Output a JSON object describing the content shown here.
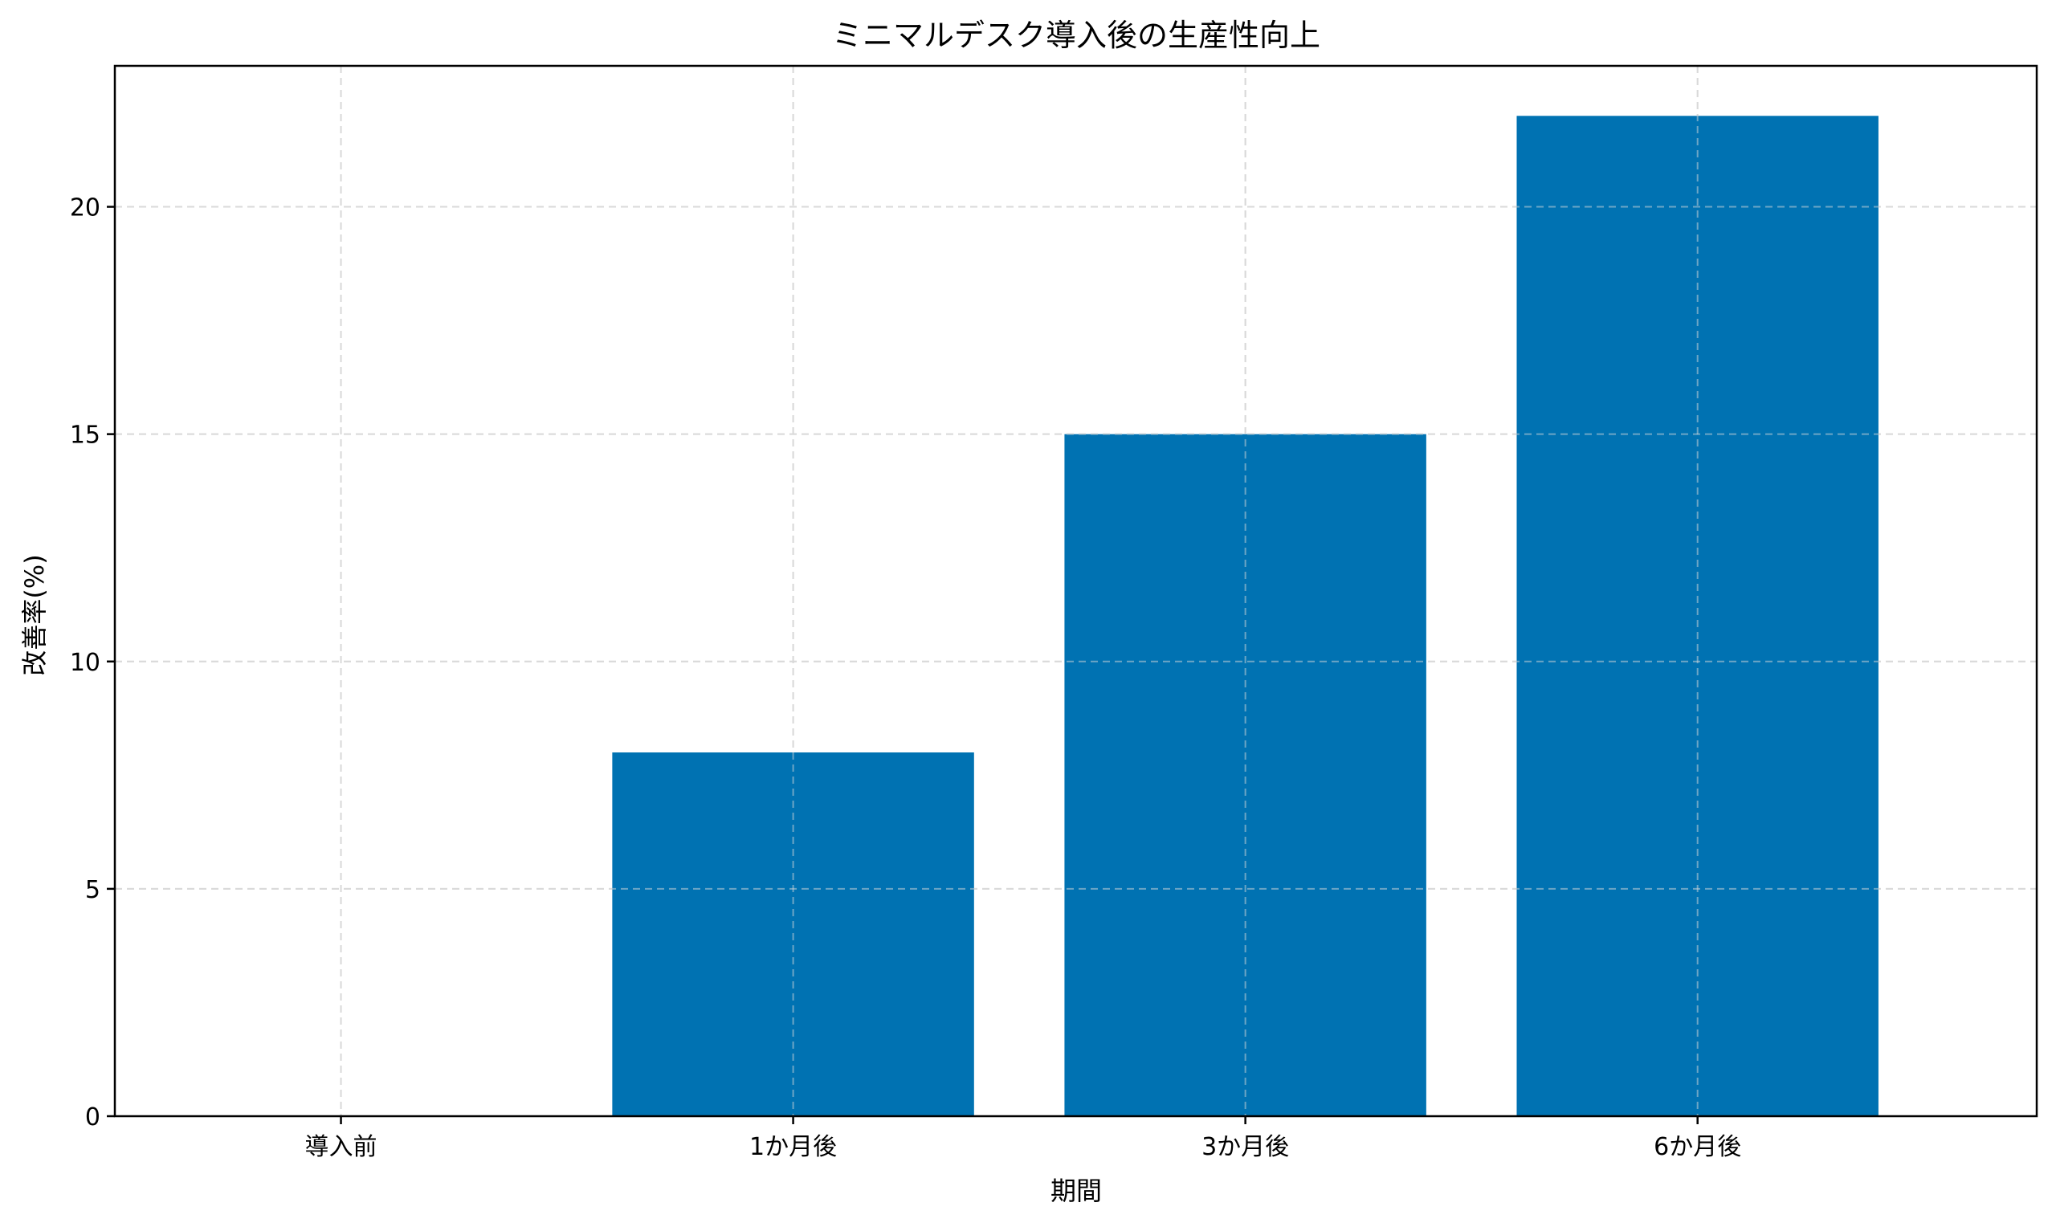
{
  "chart_data": {
    "type": "bar",
    "title": "ミニマルデスク導入後の生産性向上",
    "xlabel": "期間",
    "ylabel": "改善率(%)",
    "categories": [
      "導入前",
      "1か月後",
      "3か月後",
      "6か月後"
    ],
    "values": [
      0,
      8,
      15,
      22
    ],
    "ylim": [
      0,
      23.1
    ],
    "yticks": [
      0,
      5,
      10,
      15,
      20
    ],
    "grid": true,
    "bar_color": "#0072b2",
    "grid_color": "#d9d9d9"
  }
}
